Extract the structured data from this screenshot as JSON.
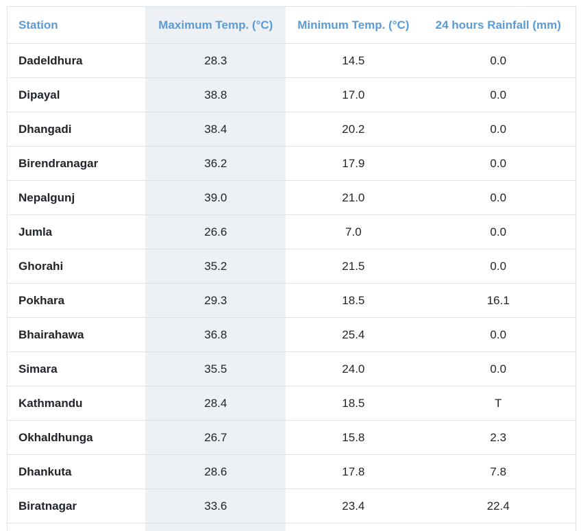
{
  "table": {
    "columns": [
      {
        "key": "station",
        "label": "Station"
      },
      {
        "key": "max_temp",
        "label": "Maximum Temp. (°C)"
      },
      {
        "key": "min_temp",
        "label": "Minimum Temp. (°C)"
      },
      {
        "key": "rainfall",
        "label": "24 hours Rainfall (mm)"
      }
    ],
    "rows": [
      {
        "station": "Dadeldhura",
        "max_temp": "28.3",
        "min_temp": "14.5",
        "rainfall": "0.0"
      },
      {
        "station": "Dipayal",
        "max_temp": "38.8",
        "min_temp": "17.0",
        "rainfall": "0.0"
      },
      {
        "station": "Dhangadi",
        "max_temp": "38.4",
        "min_temp": "20.2",
        "rainfall": "0.0"
      },
      {
        "station": "Birendranagar",
        "max_temp": "36.2",
        "min_temp": "17.9",
        "rainfall": "0.0"
      },
      {
        "station": "Nepalgunj",
        "max_temp": "39.0",
        "min_temp": "21.0",
        "rainfall": "0.0"
      },
      {
        "station": "Jumla",
        "max_temp": "26.6",
        "min_temp": "7.0",
        "rainfall": "0.0"
      },
      {
        "station": "Ghorahi",
        "max_temp": "35.2",
        "min_temp": "21.5",
        "rainfall": "0.0"
      },
      {
        "station": "Pokhara",
        "max_temp": "29.3",
        "min_temp": "18.5",
        "rainfall": "16.1"
      },
      {
        "station": "Bhairahawa",
        "max_temp": "36.8",
        "min_temp": "25.4",
        "rainfall": "0.0"
      },
      {
        "station": "Simara",
        "max_temp": "35.5",
        "min_temp": "24.0",
        "rainfall": "0.0"
      },
      {
        "station": "Kathmandu",
        "max_temp": "28.4",
        "min_temp": "18.5",
        "rainfall": "T"
      },
      {
        "station": "Okhaldhunga",
        "max_temp": "26.7",
        "min_temp": "15.8",
        "rainfall": "2.3"
      },
      {
        "station": "Dhankuta",
        "max_temp": "28.6",
        "min_temp": "17.8",
        "rainfall": "7.8"
      },
      {
        "station": "Biratnagar",
        "max_temp": "33.6",
        "min_temp": "23.4",
        "rainfall": "22.4"
      }
    ]
  },
  "colors": {
    "header_text": "#5a9bd5",
    "body_text": "#212529",
    "row_border": "#dee2e6",
    "highlight_column_bg": "#edf1f6",
    "page_bg": "#ffffff"
  }
}
